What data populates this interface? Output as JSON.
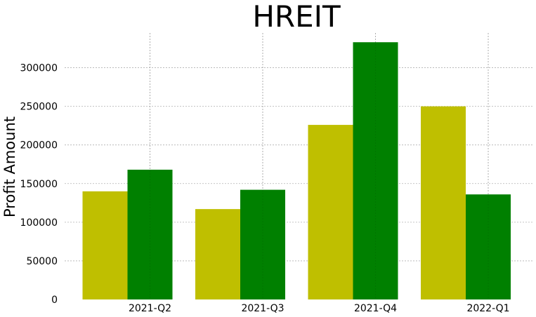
{
  "chart_data": {
    "type": "bar",
    "title": "HREIT",
    "xlabel": "",
    "ylabel": "Profit Amount",
    "categories": [
      "2021-Q2",
      "2021-Q3",
      "2021-Q4",
      "2022-Q1"
    ],
    "series": [
      {
        "color": "#bfbf00",
        "values": [
          140000,
          117000,
          226000,
          250000
        ]
      },
      {
        "color": "#008000",
        "values": [
          168000,
          142000,
          333000,
          136000
        ]
      }
    ],
    "ylim": [
      0,
      345000
    ],
    "yticks": [
      0,
      50000,
      100000,
      150000,
      200000,
      250000,
      300000
    ],
    "grid": true,
    "legend": "none"
  }
}
